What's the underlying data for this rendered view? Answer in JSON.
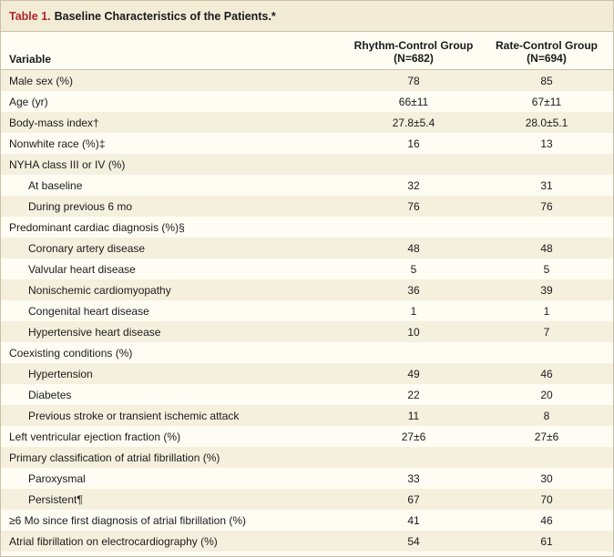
{
  "table": {
    "label": "Table 1.",
    "title": "Baseline Characteristics of the Patients.*",
    "columns": {
      "variable": "Variable",
      "rhythm_line1": "Rhythm-Control Group",
      "rhythm_line2": "(N=682)",
      "rate_line1": "Rate-Control Group",
      "rate_line2": "(N=694)"
    },
    "rows": [
      {
        "label": "Male sex (%)",
        "rhythm": "78",
        "rate": "85",
        "indent": false
      },
      {
        "label": "Age (yr)",
        "rhythm": "66±11",
        "rate": "67±11",
        "indent": false
      },
      {
        "label": "Body-mass index†",
        "rhythm": "27.8±5.4",
        "rate": "28.0±5.1",
        "indent": false
      },
      {
        "label": "Nonwhite race (%)‡",
        "rhythm": "16",
        "rate": "13",
        "indent": false
      },
      {
        "label": "NYHA class III or IV (%)",
        "rhythm": "",
        "rate": "",
        "indent": false
      },
      {
        "label": "At baseline",
        "rhythm": "32",
        "rate": "31",
        "indent": true
      },
      {
        "label": "During previous 6 mo",
        "rhythm": "76",
        "rate": "76",
        "indent": true
      },
      {
        "label": "Predominant cardiac diagnosis (%)§",
        "rhythm": "",
        "rate": "",
        "indent": false
      },
      {
        "label": "Coronary artery disease",
        "rhythm": "48",
        "rate": "48",
        "indent": true
      },
      {
        "label": "Valvular heart disease",
        "rhythm": "5",
        "rate": "5",
        "indent": true
      },
      {
        "label": "Nonischemic cardiomyopathy",
        "rhythm": "36",
        "rate": "39",
        "indent": true
      },
      {
        "label": "Congenital heart disease",
        "rhythm": "1",
        "rate": "1",
        "indent": true
      },
      {
        "label": "Hypertensive heart disease",
        "rhythm": "10",
        "rate": "7",
        "indent": true
      },
      {
        "label": "Coexisting conditions (%)",
        "rhythm": "",
        "rate": "",
        "indent": false
      },
      {
        "label": "Hypertension",
        "rhythm": "49",
        "rate": "46",
        "indent": true
      },
      {
        "label": "Diabetes",
        "rhythm": "22",
        "rate": "20",
        "indent": true
      },
      {
        "label": "Previous stroke or transient ischemic attack",
        "rhythm": "11",
        "rate": "8",
        "indent": true
      },
      {
        "label": "Left ventricular ejection fraction (%)",
        "rhythm": "27±6",
        "rate": "27±6",
        "indent": false
      },
      {
        "label": "Primary classification of atrial fibrillation (%)",
        "rhythm": "",
        "rate": "",
        "indent": false
      },
      {
        "label": "Paroxysmal",
        "rhythm": "33",
        "rate": "30",
        "indent": true
      },
      {
        "label": "Persistent¶",
        "rhythm": "67",
        "rate": "70",
        "indent": true
      },
      {
        "label": "≥6 Mo since first diagnosis of atrial fibrillation (%)",
        "rhythm": "41",
        "rate": "46",
        "indent": false
      },
      {
        "label": "Atrial fibrillation on electrocardiography (%)",
        "rhythm": "54",
        "rate": "61",
        "indent": false
      }
    ]
  }
}
